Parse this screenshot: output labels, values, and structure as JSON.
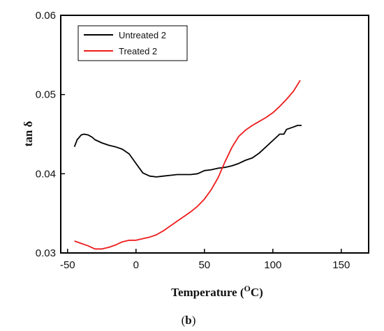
{
  "chart_data": {
    "type": "line",
    "xlabel": "Temperature (",
    "xlabel_sup": "O",
    "xlabel_unit": "C)",
    "ylabel": "tan δ",
    "caption": {
      "open": "(",
      "letter": "b",
      "close": ")"
    },
    "xlim": [
      -55,
      170
    ],
    "ylim": [
      0.03,
      0.06
    ],
    "x_ticks": [
      -50,
      0,
      50,
      100,
      150
    ],
    "x_tick_labels": [
      "-50",
      "0",
      "50",
      "100",
      "150"
    ],
    "y_ticks": [
      0.03,
      0.04,
      0.05,
      0.06
    ],
    "y_tick_labels": [
      "0.03",
      "0.04",
      "0.05",
      "0.06"
    ],
    "legend_position": "top-left",
    "grid": false,
    "series": [
      {
        "name": "Untreated 2",
        "color": "#000000",
        "x": [
          -45,
          -43,
          -40,
          -38,
          -35,
          -32,
          -30,
          -25,
          -20,
          -15,
          -10,
          -5,
          0,
          5,
          10,
          15,
          20,
          25,
          30,
          35,
          40,
          45,
          50,
          55,
          60,
          65,
          70,
          75,
          80,
          85,
          90,
          95,
          100,
          105,
          108,
          110,
          115,
          118,
          121
        ],
        "y": [
          0.0434,
          0.0443,
          0.0449,
          0.045,
          0.0449,
          0.0446,
          0.0443,
          0.0439,
          0.0436,
          0.0434,
          0.0431,
          0.0425,
          0.0413,
          0.0401,
          0.0397,
          0.0396,
          0.0397,
          0.0398,
          0.0399,
          0.0399,
          0.0399,
          0.04,
          0.0404,
          0.0405,
          0.0407,
          0.0408,
          0.041,
          0.0413,
          0.0417,
          0.042,
          0.0426,
          0.0434,
          0.0442,
          0.045,
          0.045,
          0.0456,
          0.0459,
          0.0461,
          0.0461
        ]
      },
      {
        "name": "Treated 2",
        "color": "#ee1c1c",
        "x": [
          -45,
          -40,
          -35,
          -30,
          -25,
          -20,
          -15,
          -10,
          -5,
          0,
          5,
          10,
          15,
          20,
          25,
          30,
          35,
          40,
          45,
          50,
          55,
          60,
          65,
          70,
          75,
          80,
          85,
          90,
          95,
          100,
          105,
          110,
          115,
          120
        ],
        "y": [
          0.0315,
          0.0312,
          0.0309,
          0.0305,
          0.0305,
          0.0307,
          0.031,
          0.0314,
          0.0316,
          0.0316,
          0.0318,
          0.032,
          0.0323,
          0.0328,
          0.0334,
          0.034,
          0.0346,
          0.0352,
          0.0359,
          0.0368,
          0.038,
          0.0395,
          0.0415,
          0.0433,
          0.0447,
          0.0455,
          0.0461,
          0.0466,
          0.0471,
          0.0477,
          0.0485,
          0.0494,
          0.0504,
          0.0518
        ]
      }
    ]
  }
}
